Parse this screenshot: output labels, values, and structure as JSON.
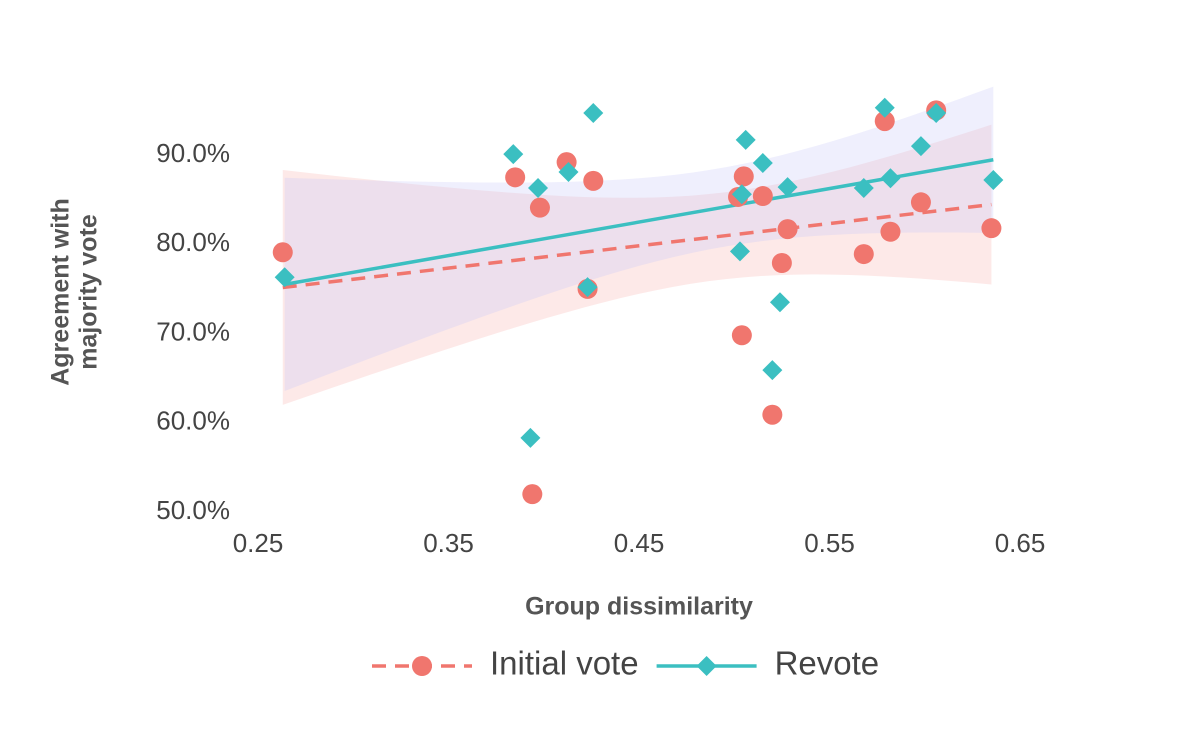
{
  "chart_data": {
    "type": "scatter",
    "xlabel": "Group dissimilarity",
    "ylabel": [
      "Agreement with",
      "majority vote"
    ],
    "xlim": [
      0.25,
      0.65
    ],
    "xticks": [
      0.25,
      0.35,
      0.45,
      0.55,
      0.65
    ],
    "ylim": [
      50,
      98
    ],
    "yticks": [
      {
        "value": 50,
        "label": "50.0%"
      },
      {
        "value": 60,
        "label": "60.0%"
      },
      {
        "value": 70,
        "label": "70.0%"
      },
      {
        "value": 80,
        "label": "80.0%"
      },
      {
        "value": 90,
        "label": "90.0%"
      }
    ],
    "legend": "lower center",
    "series": [
      {
        "name": "Initial vote",
        "color": "#f0766e",
        "band_color": "#f7b7b3",
        "marker": "circle",
        "linestyle": "dashed",
        "x": [
          0.263,
          0.385,
          0.398,
          0.412,
          0.426,
          0.423,
          0.394,
          0.502,
          0.505,
          0.515,
          0.504,
          0.52,
          0.525,
          0.528,
          0.568,
          0.579,
          0.582,
          0.598,
          0.606,
          0.635
        ],
        "values": [
          79.1,
          87.5,
          84.1,
          89.2,
          87.1,
          75.0,
          52.0,
          85.3,
          87.6,
          85.4,
          69.8,
          60.9,
          77.9,
          81.7,
          78.9,
          93.8,
          81.4,
          84.7,
          95.0,
          81.8
        ]
      },
      {
        "name": "Revote",
        "color": "#3bbfc1",
        "band_color": "#c9c9f7",
        "marker": "diamond",
        "linestyle": "solid",
        "x": [
          0.264,
          0.384,
          0.397,
          0.413,
          0.426,
          0.423,
          0.393,
          0.506,
          0.504,
          0.515,
          0.528,
          0.503,
          0.524,
          0.52,
          0.568,
          0.579,
          0.582,
          0.598,
          0.606,
          0.636
        ],
        "values": [
          76.3,
          90.1,
          86.3,
          88.1,
          94.7,
          75.2,
          58.3,
          91.7,
          85.6,
          89.1,
          86.4,
          79.2,
          73.5,
          65.9,
          86.3,
          95.3,
          87.4,
          91.0,
          94.7,
          87.2
        ]
      }
    ]
  }
}
